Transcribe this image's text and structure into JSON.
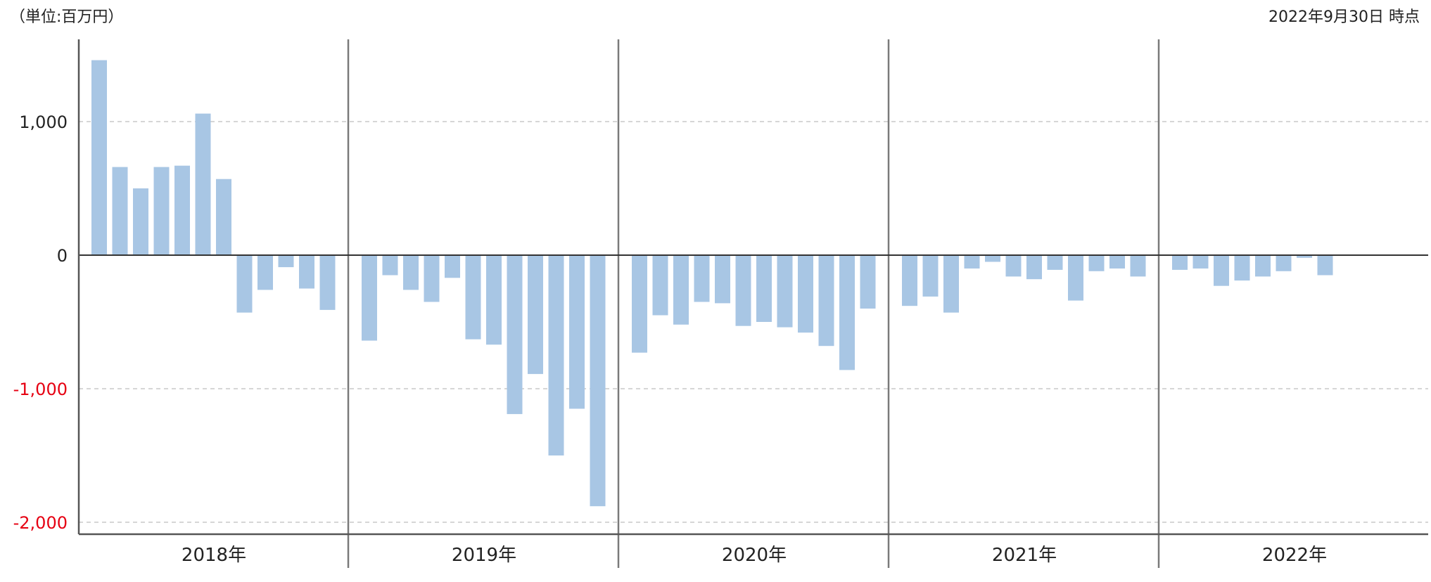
{
  "header": {
    "unit": "（単位:百万円）",
    "as_of": "2022年9月30日 時点"
  },
  "colors": {
    "bar": "#a8c6e4",
    "negative_tick": "#e60012",
    "positive_tick": "#222222",
    "grid": "#c8c8c8",
    "axis": "#555555",
    "separator": "#7a7a7a"
  },
  "chart_data": {
    "type": "bar",
    "title": "",
    "xlabel": "",
    "ylabel": "",
    "ylim": [
      -2100,
      1600
    ],
    "yticks": [
      {
        "value": 1000,
        "label": "1,000"
      },
      {
        "value": 0,
        "label": "0"
      },
      {
        "value": -1000,
        "label": "-1,000"
      },
      {
        "value": -2000,
        "label": "-2,000"
      }
    ],
    "grid": true,
    "groups": [
      {
        "label": "2018年",
        "values": [
          1460,
          660,
          500,
          660,
          670,
          1060,
          570,
          -430,
          -260,
          -90,
          -250,
          -410
        ]
      },
      {
        "label": "2019年",
        "values": [
          -640,
          -150,
          -260,
          -350,
          -170,
          -630,
          -670,
          -1190,
          -890,
          -1500,
          -1150,
          -1880
        ]
      },
      {
        "label": "2020年",
        "values": [
          -730,
          -450,
          -520,
          -350,
          -360,
          -530,
          -500,
          -540,
          -580,
          -680,
          -860,
          -400
        ]
      },
      {
        "label": "2021年",
        "values": [
          -380,
          -310,
          -430,
          -100,
          -50,
          -160,
          -180,
          -110,
          -340,
          -120,
          -100,
          -160
        ]
      },
      {
        "label": "2022年",
        "values": [
          -110,
          -100,
          -230,
          -190,
          -160,
          -120,
          -20,
          -150
        ]
      }
    ]
  }
}
